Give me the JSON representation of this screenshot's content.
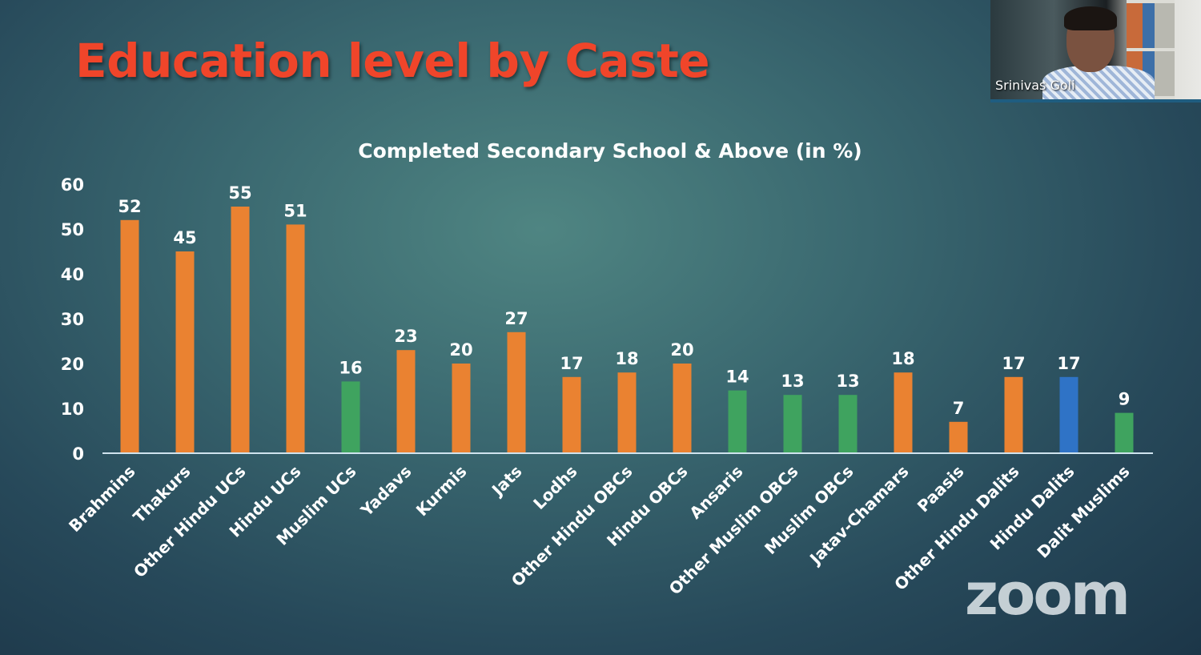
{
  "slide": {
    "title": "Education level by Caste"
  },
  "video": {
    "participant_name": "Srinivas Goli",
    "watermark": "zoom"
  },
  "colors": {
    "upper_caste_obc_dalit": "#ea8231",
    "muslim": "#3fa35f",
    "highlight": "#2f73c6",
    "axis": "#cfe3ee",
    "text": "#ffffff"
  },
  "chart_data": {
    "type": "bar",
    "title": "Completed Secondary School & Above (in %)",
    "xlabel": "",
    "ylabel": "",
    "ylim": [
      0,
      60
    ],
    "yticks": [
      0,
      10,
      20,
      30,
      40,
      50,
      60
    ],
    "grid": false,
    "categories": [
      "Brahmins",
      "Thakurs",
      "Other Hindu UCs",
      "Hindu UCs",
      "Muslim UCs",
      "Yadavs",
      "Kurmis",
      "Jats",
      "Lodhs",
      "Other Hindu OBCs",
      "Hindu OBCs",
      "Ansaris",
      "Other Muslim OBCs",
      "Muslim OBCs",
      "Jatav-Chamars",
      "Paasis",
      "Other Hindu Dalits",
      "Hindu Dalits",
      "Dalit Muslims"
    ],
    "values": [
      52,
      45,
      55,
      51,
      16,
      23,
      20,
      27,
      17,
      18,
      20,
      14,
      13,
      13,
      18,
      7,
      17,
      17,
      9
    ],
    "bar_colors": [
      "orange",
      "orange",
      "orange",
      "orange",
      "green",
      "orange",
      "orange",
      "orange",
      "orange",
      "orange",
      "orange",
      "green",
      "green",
      "green",
      "orange",
      "orange",
      "orange",
      "blue",
      "green"
    ]
  }
}
